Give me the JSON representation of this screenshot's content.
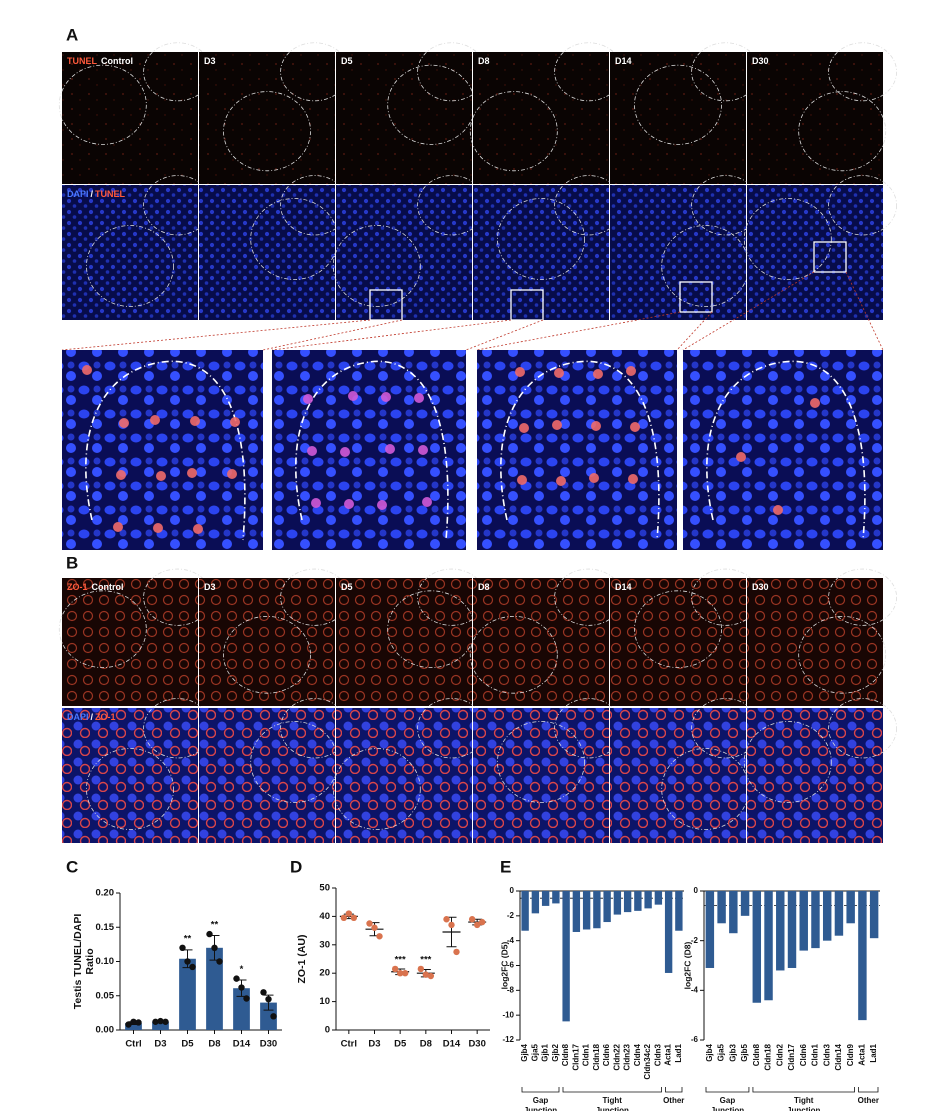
{
  "figure": {
    "panel_a": {
      "label": "A",
      "columns": [
        "Control",
        "D3",
        "D5",
        "D8",
        "D14",
        "D30"
      ],
      "row1_stain": "TUNEL",
      "row2_stain": [
        "DAPI",
        "/",
        "TUNEL"
      ]
    },
    "panel_b": {
      "label": "B",
      "columns": [
        "Control",
        "D3",
        "D5",
        "D8",
        "D14",
        "D30"
      ],
      "row1_stain": "ZO-1",
      "row2_stain": [
        "DAPI",
        "/",
        "ZO-1"
      ]
    }
  },
  "chart_data": [
    {
      "type": "bar",
      "panel_label": "C",
      "ylabel": [
        "Testis TUNEL/DAPI",
        "Ratio"
      ],
      "categories": [
        "Ctrl",
        "D3",
        "D5",
        "D8",
        "D14",
        "D30"
      ],
      "values": [
        0.01,
        0.012,
        0.104,
        0.12,
        0.061,
        0.04
      ],
      "errors": [
        0.002,
        0.001,
        0.013,
        0.018,
        0.012,
        0.011
      ],
      "points": [
        [
          0.008,
          0.012,
          0.011
        ],
        [
          0.012,
          0.013,
          0.012
        ],
        [
          0.12,
          0.1,
          0.092
        ],
        [
          0.14,
          0.12,
          0.1
        ],
        [
          0.075,
          0.062,
          0.046
        ],
        [
          0.055,
          0.045,
          0.02
        ]
      ],
      "annotations": [
        null,
        null,
        "**",
        "**",
        "*",
        null
      ],
      "color": "#2f5b92",
      "point_color": "#111111",
      "ylim": [
        0,
        0.2
      ],
      "yticks": [
        {
          "value": 0,
          "label": "0.00"
        },
        {
          "value": 0.05,
          "label": "0.05"
        },
        {
          "value": 0.1,
          "label": "0.10"
        },
        {
          "value": 0.15,
          "label": "0.15"
        },
        {
          "value": 0.2,
          "label": "0.20"
        }
      ]
    },
    {
      "type": "dot",
      "panel_label": "D",
      "ylabel": [
        "ZO-1 (AU)"
      ],
      "categories": [
        "Ctrl",
        "D3",
        "D5",
        "D8",
        "D14",
        "D30"
      ],
      "values": [
        40,
        35.5,
        20.5,
        20,
        34.5,
        38
      ],
      "errors": [
        0.8,
        2.3,
        1.0,
        1.3,
        5.2,
        1.0
      ],
      "points": [
        [
          39.5,
          41,
          39.5
        ],
        [
          37.5,
          36,
          33
        ],
        [
          21.5,
          20,
          20
        ],
        [
          21.5,
          19.5,
          19
        ],
        [
          39,
          37,
          27.5
        ],
        [
          39,
          37,
          38
        ]
      ],
      "annotations": [
        null,
        null,
        "***",
        "***",
        null,
        null
      ],
      "color": "#d9734e",
      "ylim": [
        0,
        50
      ],
      "yticks": [
        0,
        10,
        20,
        30,
        40,
        50
      ]
    },
    {
      "type": "bar",
      "panel_label": "E",
      "ylabel": [
        "log2FC (D5)"
      ],
      "categories": [
        "Gjb4",
        "Gja5",
        "Gjb1",
        "Gjb2",
        "Cldn8",
        "Cldn17",
        "Cldn1",
        "Cldn18",
        "Cldn6",
        "Cldn22",
        "Cldn23",
        "Cldn4",
        "Cldn34c2",
        "Cldn3",
        "Acta1",
        "Lad1"
      ],
      "values": [
        -3.2,
        -1.8,
        -1.2,
        -1.0,
        -10.5,
        -3.3,
        -3.1,
        -3.0,
        -2.5,
        -1.9,
        -1.7,
        -1.6,
        -1.4,
        -1.1,
        -6.6,
        -3.2
      ],
      "groups": [
        {
          "label": [
            "Gap",
            "Junction"
          ],
          "size": 4
        },
        {
          "label": [
            "Tight",
            "Junction"
          ],
          "size": 10
        },
        {
          "label": [
            "Other"
          ],
          "size": 2
        }
      ],
      "reference_line": -0.58,
      "xtick_rotation": -90,
      "color": "#2f5b92",
      "ylim": [
        -12,
        0
      ],
      "yticks": [
        0,
        -2,
        -4,
        -6,
        -8,
        -10,
        -12
      ]
    },
    {
      "type": "bar",
      "ylabel": [
        "log2FC (D8)"
      ],
      "categories": [
        "Gjb4",
        "Gja5",
        "Gjb3",
        "Gjb5",
        "Cldn8",
        "Cldn18",
        "Cldn2",
        "Cldn17",
        "Cldn6",
        "Cldn1",
        "Cldn3",
        "Cldn14",
        "Cldn9",
        "Acta1",
        "Lad1"
      ],
      "values": [
        -3.1,
        -1.3,
        -1.7,
        -1.0,
        -4.5,
        -4.4,
        -3.2,
        -3.1,
        -2.4,
        -2.3,
        -2.0,
        -1.8,
        -1.3,
        -5.2,
        -1.9
      ],
      "groups": [
        {
          "label": [
            "Gap",
            "Junction"
          ],
          "size": 4
        },
        {
          "label": [
            "Tight",
            "Junction"
          ],
          "size": 9
        },
        {
          "label": [
            "Other"
          ],
          "size": 2
        }
      ],
      "reference_line": -0.58,
      "xtick_rotation": -90,
      "color": "#2f5b92",
      "ylim": [
        -6,
        0
      ],
      "yticks": [
        0,
        -2,
        -4,
        -6
      ]
    }
  ]
}
